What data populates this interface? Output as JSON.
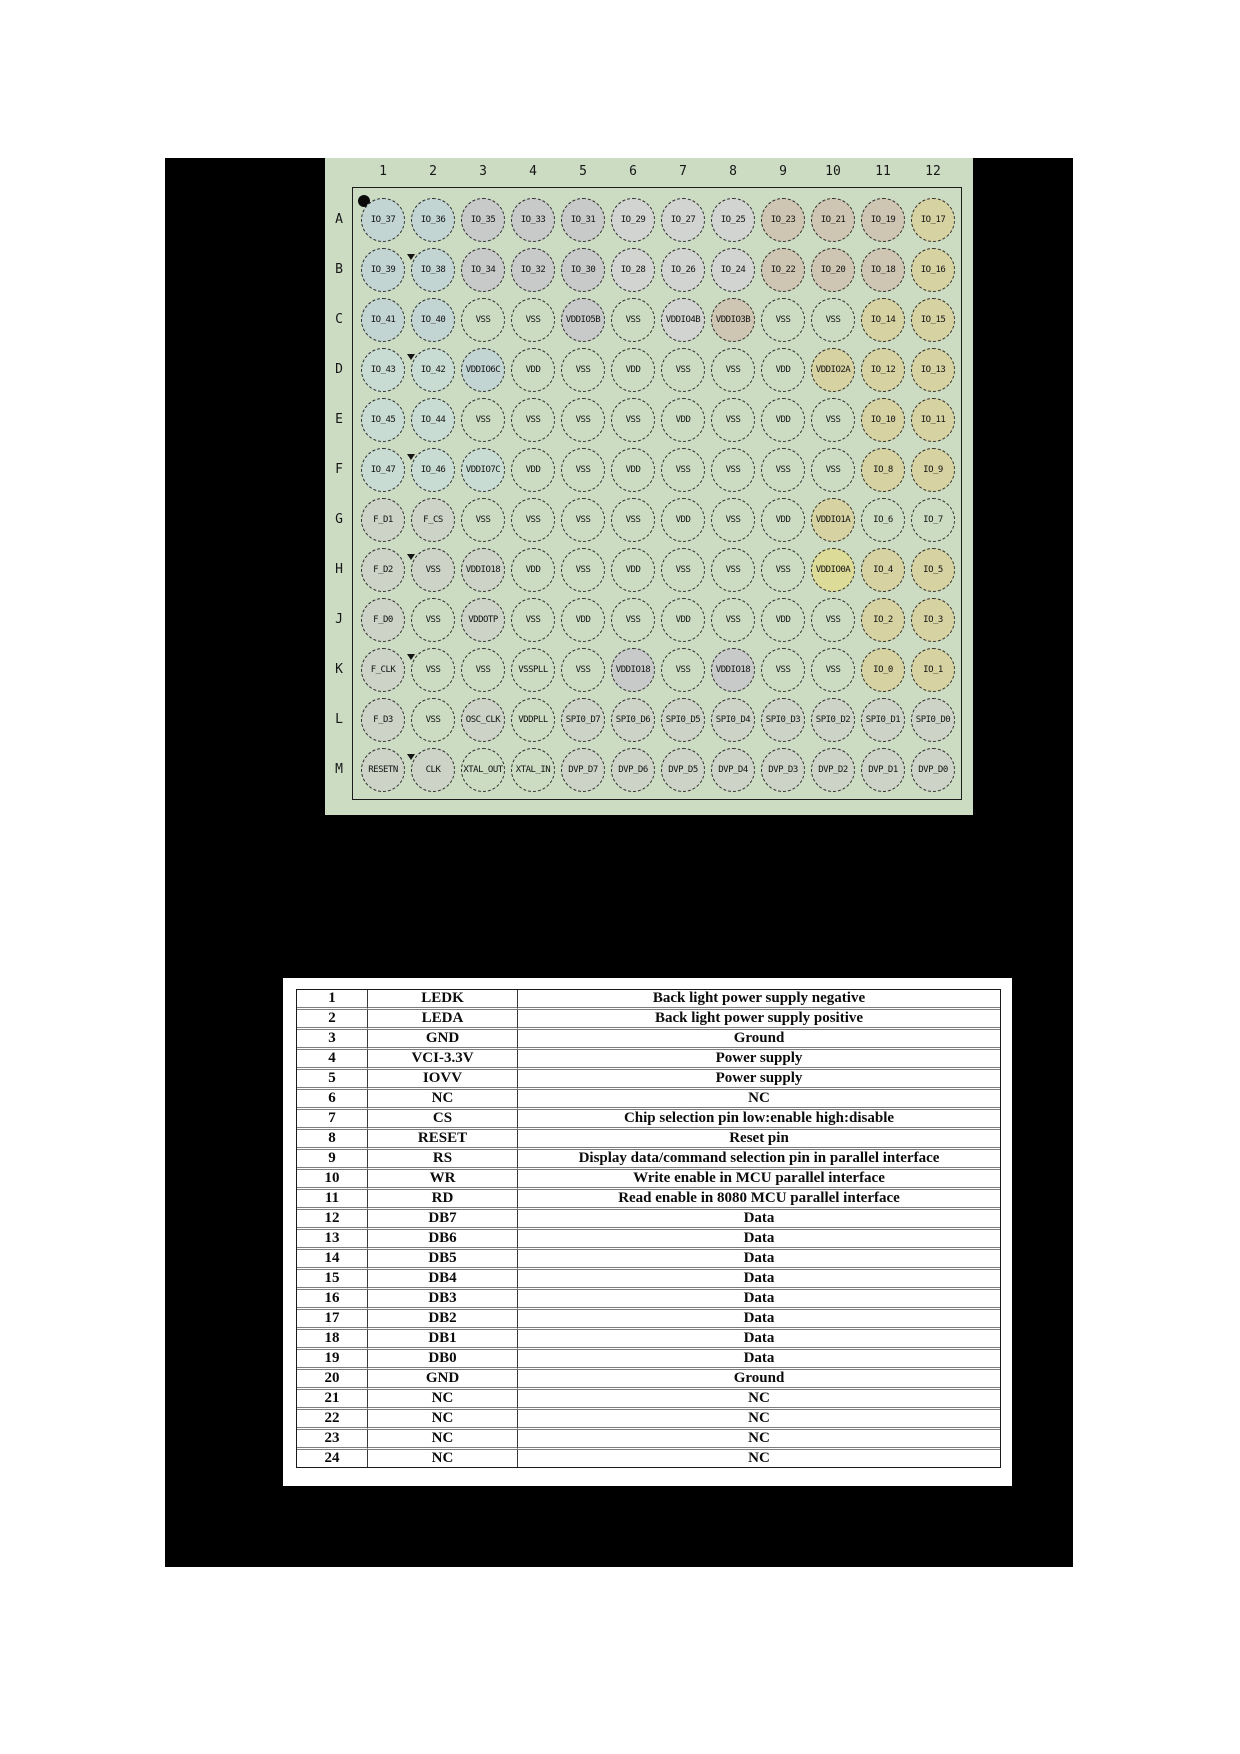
{
  "diagram": {
    "col_headers": [
      "1",
      "2",
      "3",
      "4",
      "5",
      "6",
      "7",
      "8",
      "9",
      "10",
      "11",
      "12"
    ],
    "row_headers": [
      "A",
      "B",
      "C",
      "D",
      "E",
      "F",
      "G",
      "H",
      "J",
      "K",
      "L",
      "M"
    ],
    "marker_rows": [
      "B",
      "D",
      "F",
      "H",
      "K",
      "M"
    ],
    "palette": {
      "blue": "#c2d5d2",
      "paleblue": "#c9dcd4",
      "gray": "#c8cac9",
      "lightgray": "#d1d4d0",
      "tan": "#cec6b2",
      "khaki": "#d6d2a2",
      "yellow": "#dcdb97",
      "graygreen": "#cdd3c6",
      "plain": "transparent",
      "diagram_background": "#ccdcc3",
      "page_background": "#000000"
    },
    "rows": [
      {
        "row": "A",
        "pins": [
          {
            "label": "IO_37",
            "color": "blue"
          },
          {
            "label": "IO_36",
            "color": "blue"
          },
          {
            "label": "IO_35",
            "color": "gray"
          },
          {
            "label": "IO_33",
            "color": "gray"
          },
          {
            "label": "IO_31",
            "color": "gray"
          },
          {
            "label": "IO_29",
            "color": "lightgray"
          },
          {
            "label": "IO_27",
            "color": "lightgray"
          },
          {
            "label": "IO_25",
            "color": "lightgray"
          },
          {
            "label": "IO_23",
            "color": "tan"
          },
          {
            "label": "IO_21",
            "color": "tan"
          },
          {
            "label": "IO_19",
            "color": "tan"
          },
          {
            "label": "IO_17",
            "color": "khaki"
          }
        ]
      },
      {
        "row": "B",
        "pins": [
          {
            "label": "IO_39",
            "color": "blue"
          },
          {
            "label": "IO_38",
            "color": "blue"
          },
          {
            "label": "IO_34",
            "color": "gray"
          },
          {
            "label": "IO_32",
            "color": "gray"
          },
          {
            "label": "IO_30",
            "color": "gray"
          },
          {
            "label": "IO_28",
            "color": "lightgray"
          },
          {
            "label": "IO_26",
            "color": "lightgray"
          },
          {
            "label": "IO_24",
            "color": "lightgray"
          },
          {
            "label": "IO_22",
            "color": "tan"
          },
          {
            "label": "IO_20",
            "color": "tan"
          },
          {
            "label": "IO_18",
            "color": "tan"
          },
          {
            "label": "IO_16",
            "color": "khaki"
          }
        ]
      },
      {
        "row": "C",
        "pins": [
          {
            "label": "IO_41",
            "color": "blue"
          },
          {
            "label": "IO_40",
            "color": "blue"
          },
          {
            "label": "VSS",
            "color": "plain"
          },
          {
            "label": "VSS",
            "color": "plain"
          },
          {
            "label": "VDDIO5B",
            "color": "gray"
          },
          {
            "label": "VSS",
            "color": "plain"
          },
          {
            "label": "VDDIO4B",
            "color": "lightgray"
          },
          {
            "label": "VDDIO3B",
            "color": "tan"
          },
          {
            "label": "VSS",
            "color": "plain"
          },
          {
            "label": "VSS",
            "color": "plain"
          },
          {
            "label": "IO_14",
            "color": "khaki"
          },
          {
            "label": "IO_15",
            "color": "khaki"
          }
        ]
      },
      {
        "row": "D",
        "pins": [
          {
            "label": "IO_43",
            "color": "paleblue"
          },
          {
            "label": "IO_42",
            "color": "paleblue"
          },
          {
            "label": "VDDIO6C",
            "color": "blue"
          },
          {
            "label": "VDD",
            "color": "plain"
          },
          {
            "label": "VSS",
            "color": "plain"
          },
          {
            "label": "VDD",
            "color": "plain"
          },
          {
            "label": "VSS",
            "color": "plain"
          },
          {
            "label": "VSS",
            "color": "plain"
          },
          {
            "label": "VDD",
            "color": "plain"
          },
          {
            "label": "VDDIO2A",
            "color": "khaki"
          },
          {
            "label": "IO_12",
            "color": "khaki"
          },
          {
            "label": "IO_13",
            "color": "khaki"
          }
        ]
      },
      {
        "row": "E",
        "pins": [
          {
            "label": "IO_45",
            "color": "paleblue"
          },
          {
            "label": "IO_44",
            "color": "paleblue"
          },
          {
            "label": "VSS",
            "color": "plain"
          },
          {
            "label": "VSS",
            "color": "plain"
          },
          {
            "label": "VSS",
            "color": "plain"
          },
          {
            "label": "VSS",
            "color": "plain"
          },
          {
            "label": "VDD",
            "color": "plain"
          },
          {
            "label": "VSS",
            "color": "plain"
          },
          {
            "label": "VDD",
            "color": "plain"
          },
          {
            "label": "VSS",
            "color": "plain"
          },
          {
            "label": "IO_10",
            "color": "khaki"
          },
          {
            "label": "IO_11",
            "color": "khaki"
          }
        ]
      },
      {
        "row": "F",
        "pins": [
          {
            "label": "IO_47",
            "color": "paleblue"
          },
          {
            "label": "IO_46",
            "color": "paleblue"
          },
          {
            "label": "VDDIO7C",
            "color": "paleblue"
          },
          {
            "label": "VDD",
            "color": "plain"
          },
          {
            "label": "VSS",
            "color": "plain"
          },
          {
            "label": "VDD",
            "color": "plain"
          },
          {
            "label": "VSS",
            "color": "plain"
          },
          {
            "label": "VSS",
            "color": "plain"
          },
          {
            "label": "VSS",
            "color": "plain"
          },
          {
            "label": "VSS",
            "color": "plain"
          },
          {
            "label": "IO_8",
            "color": "khaki"
          },
          {
            "label": "IO_9",
            "color": "khaki"
          }
        ]
      },
      {
        "row": "G",
        "pins": [
          {
            "label": "F_D1",
            "color": "graygreen"
          },
          {
            "label": "F_CS",
            "color": "graygreen"
          },
          {
            "label": "VSS",
            "color": "plain"
          },
          {
            "label": "VSS",
            "color": "plain"
          },
          {
            "label": "VSS",
            "color": "plain"
          },
          {
            "label": "VSS",
            "color": "plain"
          },
          {
            "label": "VDD",
            "color": "plain"
          },
          {
            "label": "VSS",
            "color": "plain"
          },
          {
            "label": "VDD",
            "color": "plain"
          },
          {
            "label": "VDDIO1A",
            "color": "khaki"
          },
          {
            "label": "IO_6",
            "color": "plain"
          },
          {
            "label": "IO_7",
            "color": "plain"
          }
        ]
      },
      {
        "row": "H",
        "pins": [
          {
            "label": "F_D2",
            "color": "graygreen"
          },
          {
            "label": "VSS",
            "color": "graygreen"
          },
          {
            "label": "VDDIO18",
            "color": "graygreen"
          },
          {
            "label": "VDD",
            "color": "plain"
          },
          {
            "label": "VSS",
            "color": "plain"
          },
          {
            "label": "VDD",
            "color": "plain"
          },
          {
            "label": "VSS",
            "color": "plain"
          },
          {
            "label": "VSS",
            "color": "plain"
          },
          {
            "label": "VSS",
            "color": "plain"
          },
          {
            "label": "VDDIO0A",
            "color": "yellow"
          },
          {
            "label": "IO_4",
            "color": "khaki"
          },
          {
            "label": "IO_5",
            "color": "khaki"
          }
        ]
      },
      {
        "row": "J",
        "pins": [
          {
            "label": "F_D0",
            "color": "graygreen"
          },
          {
            "label": "VSS",
            "color": "plain"
          },
          {
            "label": "VDDOTP",
            "color": "graygreen"
          },
          {
            "label": "VSS",
            "color": "plain"
          },
          {
            "label": "VDD",
            "color": "plain"
          },
          {
            "label": "VSS",
            "color": "plain"
          },
          {
            "label": "VDD",
            "color": "plain"
          },
          {
            "label": "VSS",
            "color": "plain"
          },
          {
            "label": "VDD",
            "color": "plain"
          },
          {
            "label": "VSS",
            "color": "plain"
          },
          {
            "label": "IO_2",
            "color": "khaki"
          },
          {
            "label": "IO_3",
            "color": "khaki"
          }
        ]
      },
      {
        "row": "K",
        "pins": [
          {
            "label": "F_CLK",
            "color": "graygreen"
          },
          {
            "label": "VSS",
            "color": "plain"
          },
          {
            "label": "VSS",
            "color": "plain"
          },
          {
            "label": "VSSPLL",
            "color": "plain"
          },
          {
            "label": "VSS",
            "color": "plain"
          },
          {
            "label": "VDDIO18",
            "color": "gray"
          },
          {
            "label": "VSS",
            "color": "plain"
          },
          {
            "label": "VDDIO18",
            "color": "gray"
          },
          {
            "label": "VSS",
            "color": "plain"
          },
          {
            "label": "VSS",
            "color": "plain"
          },
          {
            "label": "IO_0",
            "color": "khaki"
          },
          {
            "label": "IO_1",
            "color": "khaki"
          }
        ]
      },
      {
        "row": "L",
        "pins": [
          {
            "label": "F_D3",
            "color": "graygreen"
          },
          {
            "label": "VSS",
            "color": "plain"
          },
          {
            "label": "OSC_CLK",
            "color": "graygreen"
          },
          {
            "label": "VDDPLL",
            "color": "plain"
          },
          {
            "label": "SPI0_D7",
            "color": "graygreen"
          },
          {
            "label": "SPI0_D6",
            "color": "graygreen"
          },
          {
            "label": "SPI0_D5",
            "color": "graygreen"
          },
          {
            "label": "SPI0_D4",
            "color": "graygreen"
          },
          {
            "label": "SPI0_D3",
            "color": "graygreen"
          },
          {
            "label": "SPI0_D2",
            "color": "graygreen"
          },
          {
            "label": "SPI0_D1",
            "color": "graygreen"
          },
          {
            "label": "SPI0_D0",
            "color": "graygreen"
          }
        ]
      },
      {
        "row": "M",
        "pins": [
          {
            "label": "RESETN",
            "color": "graygreen"
          },
          {
            "label": "CLK",
            "color": "graygreen"
          },
          {
            "label": "XTAL_OUT",
            "color": "plain"
          },
          {
            "label": "XTAL_IN",
            "color": "plain"
          },
          {
            "label": "DVP_D7",
            "color": "graygreen"
          },
          {
            "label": "DVP_D6",
            "color": "graygreen"
          },
          {
            "label": "DVP_D5",
            "color": "graygreen"
          },
          {
            "label": "DVP_D4",
            "color": "graygreen"
          },
          {
            "label": "DVP_D3",
            "color": "graygreen"
          },
          {
            "label": "DVP_D2",
            "color": "graygreen"
          },
          {
            "label": "DVP_D1",
            "color": "graygreen"
          },
          {
            "label": "DVP_D0",
            "color": "graygreen"
          }
        ]
      }
    ]
  },
  "table": {
    "rows": [
      {
        "pin": "1",
        "name": "LEDK",
        "desc": "Back light power supply negative"
      },
      {
        "pin": "2",
        "name": "LEDA",
        "desc": "Back light power supply positive"
      },
      {
        "pin": "3",
        "name": "GND",
        "desc": "Ground"
      },
      {
        "pin": "4",
        "name": "VCI-3.3V",
        "desc": "Power supply"
      },
      {
        "pin": "5",
        "name": "IOVV",
        "desc": "Power supply"
      },
      {
        "pin": "6",
        "name": "NC",
        "desc": "NC"
      },
      {
        "pin": "7",
        "name": "CS",
        "desc": "Chip selection pin low:enable high:disable"
      },
      {
        "pin": "8",
        "name": "RESET",
        "desc": "Reset pin"
      },
      {
        "pin": "9",
        "name": "RS",
        "desc": "Display data/command selection pin in parallel interface"
      },
      {
        "pin": "10",
        "name": "WR",
        "desc": "Write enable in MCU parallel interface"
      },
      {
        "pin": "11",
        "name": "RD",
        "desc": "Read enable in 8080 MCU parallel interface"
      },
      {
        "pin": "12",
        "name": "DB7",
        "desc": "Data"
      },
      {
        "pin": "13",
        "name": "DB6",
        "desc": "Data"
      },
      {
        "pin": "14",
        "name": "DB5",
        "desc": "Data"
      },
      {
        "pin": "15",
        "name": "DB4",
        "desc": "Data"
      },
      {
        "pin": "16",
        "name": "DB3",
        "desc": "Data"
      },
      {
        "pin": "17",
        "name": "DB2",
        "desc": "Data"
      },
      {
        "pin": "18",
        "name": "DB1",
        "desc": "Data"
      },
      {
        "pin": "19",
        "name": "DB0",
        "desc": "Data"
      },
      {
        "pin": "20",
        "name": "GND",
        "desc": "Ground"
      },
      {
        "pin": "21",
        "name": "NC",
        "desc": "NC"
      },
      {
        "pin": "22",
        "name": "NC",
        "desc": "NC"
      },
      {
        "pin": "23",
        "name": "NC",
        "desc": "NC"
      },
      {
        "pin": "24",
        "name": "NC",
        "desc": "NC"
      }
    ]
  }
}
